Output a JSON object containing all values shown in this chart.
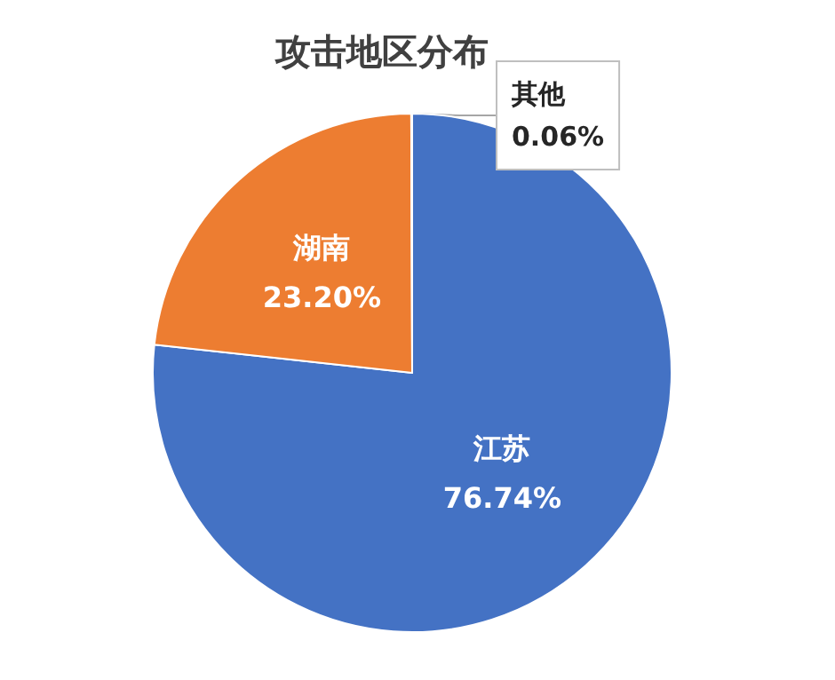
{
  "chart_data": {
    "type": "pie",
    "title": "攻击地区分布",
    "categories": [
      "江苏",
      "湖南",
      "其他"
    ],
    "values": [
      76.74,
      23.2,
      0.06
    ],
    "value_labels": [
      "76.74%",
      "23.20%",
      "0.06%"
    ],
    "colors": [
      "#4472c4",
      "#ed7d31",
      "#a5a5a5"
    ],
    "legend": false
  }
}
